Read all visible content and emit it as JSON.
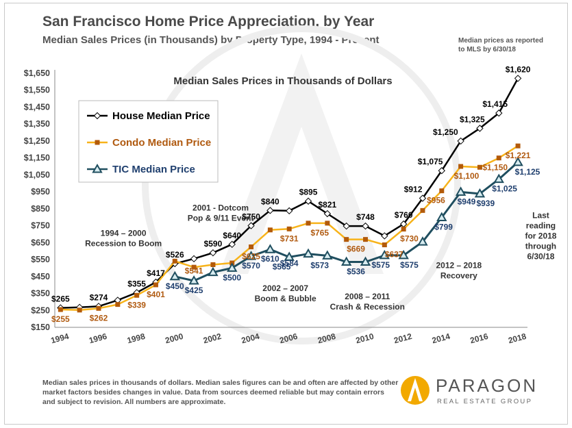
{
  "header": {
    "title": "San Francisco Home Price Appreciation, by Year",
    "subtitle": "Median Sales Prices (in Thousands) by Property Type, 1994 - Present",
    "note_line1": "Median prices as reported",
    "note_line2": "to MLS by 6/30/18"
  },
  "footer": {
    "note": "Median sales prices in thousands of dollars. Median sales figures can be and often are affected by other market factors besides changes in value. Data from sources deemed reliable but may contain errors and subject to revision. All numbers are approximate.",
    "logo_name": "PARAGON",
    "logo_tagline": "REAL ESTATE GROUP"
  },
  "chart_data": {
    "type": "line",
    "title": "Median Sales Prices in Thousands of Dollars",
    "xlabel": "",
    "ylabel": "",
    "xlim": [
      1993.7,
      2018.5
    ],
    "ylim": [
      150,
      1650
    ],
    "grid": false,
    "legend": "upper-left",
    "y_ticks": [
      150,
      250,
      350,
      450,
      550,
      650,
      750,
      850,
      950,
      1050,
      1150,
      1250,
      1350,
      1450,
      1550,
      1650
    ],
    "y_tick_labels": [
      "$150",
      "$250",
      "$350",
      "$450",
      "$550",
      "$650",
      "$750",
      "$850",
      "$950",
      "$1,050",
      "$1,150",
      "$1,250",
      "$1,350",
      "$1,450",
      "$1,550",
      "$1,650"
    ],
    "x_ticks": [
      1994,
      1996,
      1998,
      2000,
      2002,
      2004,
      2006,
      2008,
      2010,
      2012,
      2014,
      2016,
      2018
    ],
    "x_tick_labels": [
      "1994",
      "1996",
      "1998",
      "2000",
      "2002",
      "2004",
      "2006",
      "2008",
      "2010",
      "2012",
      "2014",
      "2016",
      "2018"
    ],
    "series": [
      {
        "name": "House Median Price",
        "color": "#000000",
        "marker": "diamond",
        "label_color": "#000000",
        "x": [
          1994,
          1995,
          1996,
          1997,
          1998,
          1999,
          2000,
          2001,
          2002,
          2003,
          2004,
          2005,
          2006,
          2007,
          2008,
          2009,
          2010,
          2011,
          2012,
          2013,
          2014,
          2015,
          2016,
          2017,
          2018
        ],
        "values": [
          265,
          268,
          274,
          310,
          355,
          417,
          526,
          555,
          590,
          640,
          750,
          840,
          838,
          895,
          821,
          748,
          748,
          690,
          760,
          912,
          1075,
          1250,
          1325,
          1415,
          1620
        ]
      },
      {
        "name": "Condo Median Price",
        "color": "#f7b31a",
        "marker": "square",
        "marker_color": "#b35a0a",
        "label_color": "#b05a10",
        "x": [
          1994,
          1995,
          1996,
          1997,
          1998,
          1999,
          2000,
          2001,
          2002,
          2003,
          2004,
          2005,
          2006,
          2007,
          2008,
          2009,
          2010,
          2011,
          2012,
          2013,
          2014,
          2015,
          2016,
          2017,
          2018
        ],
        "values": [
          255,
          252,
          262,
          285,
          339,
          401,
          541,
          505,
          520,
          530,
          625,
          725,
          731,
          765,
          765,
          669,
          669,
          637,
          730,
          840,
          956,
          1100,
          1095,
          1150,
          1221
        ]
      },
      {
        "name": "TIC Median Price",
        "color": "#1f4e5f",
        "marker": "triangle",
        "label_color": "#1f3f6e",
        "x": [
          2000,
          2001,
          2002,
          2003,
          2004,
          2005,
          2006,
          2007,
          2008,
          2009,
          2010,
          2011,
          2012,
          2013,
          2014,
          2015,
          2016,
          2017,
          2018
        ],
        "values": [
          450,
          425,
          475,
          500,
          570,
          610,
          565,
          584,
          573,
          536,
          536,
          575,
          575,
          655,
          799,
          949,
          939,
          1025,
          1125
        ]
      }
    ],
    "data_labels": [
      {
        "series": 0,
        "x": 1994,
        "y": 265,
        "text": "$265"
      },
      {
        "series": 0,
        "x": 1996,
        "y": 274,
        "text": "$274"
      },
      {
        "series": 0,
        "x": 1998,
        "y": 355,
        "text": "$355"
      },
      {
        "series": 0,
        "x": 1999,
        "y": 417,
        "text": "$417"
      },
      {
        "series": 0,
        "x": 2000,
        "y": 526,
        "text": "$526"
      },
      {
        "series": 0,
        "x": 2002,
        "y": 590,
        "text": "$590"
      },
      {
        "series": 0,
        "x": 2003,
        "y": 640,
        "text": "$640"
      },
      {
        "series": 0,
        "x": 2004,
        "y": 750,
        "text": "$750"
      },
      {
        "series": 0,
        "x": 2005,
        "y": 840,
        "text": "$840"
      },
      {
        "series": 0,
        "x": 2007,
        "y": 895,
        "text": "$895"
      },
      {
        "series": 0,
        "x": 2008,
        "y": 821,
        "text": "$821"
      },
      {
        "series": 0,
        "x": 2010,
        "y": 748,
        "text": "$748"
      },
      {
        "series": 0,
        "x": 2012,
        "y": 760,
        "text": "$760"
      },
      {
        "series": 0,
        "x": 2012.5,
        "y": 912,
        "text": "$912"
      },
      {
        "series": 0,
        "x": 2013.4,
        "y": 1075,
        "text": "$1,075"
      },
      {
        "series": 0,
        "x": 2014.2,
        "y": 1250,
        "text": "$1,250"
      },
      {
        "series": 0,
        "x": 2015.6,
        "y": 1325,
        "text": "$1,325"
      },
      {
        "series": 0,
        "x": 2016.8,
        "y": 1415,
        "text": "$1,415"
      },
      {
        "series": 0,
        "x": 2018,
        "y": 1620,
        "text": "$1,620"
      },
      {
        "series": 1,
        "x": 1994,
        "y": 255,
        "text": "$255"
      },
      {
        "series": 1,
        "x": 1996,
        "y": 262,
        "text": "$262"
      },
      {
        "series": 1,
        "x": 1998,
        "y": 339,
        "text": "$339"
      },
      {
        "series": 1,
        "x": 1999,
        "y": 401,
        "text": "$401"
      },
      {
        "series": 1,
        "x": 2001,
        "y": 541,
        "text": "$541"
      },
      {
        "series": 1,
        "x": 2004,
        "y": 625,
        "text": "$625"
      },
      {
        "series": 1,
        "x": 2006,
        "y": 731,
        "text": "$731"
      },
      {
        "series": 1,
        "x": 2007.6,
        "y": 765,
        "text": "$765"
      },
      {
        "series": 1,
        "x": 2009.5,
        "y": 669,
        "text": "$669"
      },
      {
        "series": 1,
        "x": 2011.5,
        "y": 637,
        "text": "$637"
      },
      {
        "series": 1,
        "x": 2012.3,
        "y": 730,
        "text": "$730"
      },
      {
        "series": 1,
        "x": 2013.7,
        "y": 956,
        "text": "$956"
      },
      {
        "series": 1,
        "x": 2015.3,
        "y": 1100,
        "text": "$1,100"
      },
      {
        "series": 1,
        "x": 2016.8,
        "y": 1150,
        "text": "$1,150"
      },
      {
        "series": 1,
        "x": 2018,
        "y": 1221,
        "text": "$1,221"
      },
      {
        "series": 2,
        "x": 2000,
        "y": 450,
        "text": "$450"
      },
      {
        "series": 2,
        "x": 2001,
        "y": 425,
        "text": "$425"
      },
      {
        "series": 2,
        "x": 2003,
        "y": 500,
        "text": "$500"
      },
      {
        "series": 2,
        "x": 2004,
        "y": 570,
        "text": "$570"
      },
      {
        "series": 2,
        "x": 2005,
        "y": 610,
        "text": "$610"
      },
      {
        "series": 2,
        "x": 2005.6,
        "y": 565,
        "text": "$565"
      },
      {
        "series": 2,
        "x": 2006,
        "y": 584,
        "text": "$584"
      },
      {
        "series": 2,
        "x": 2007.6,
        "y": 573,
        "text": "$573"
      },
      {
        "series": 2,
        "x": 2009.5,
        "y": 536,
        "text": "$536"
      },
      {
        "series": 2,
        "x": 2010.8,
        "y": 575,
        "text": "$575"
      },
      {
        "series": 2,
        "x": 2012.3,
        "y": 575,
        "text": "$575"
      },
      {
        "series": 2,
        "x": 2014.1,
        "y": 799,
        "text": "$799"
      },
      {
        "series": 2,
        "x": 2015.3,
        "y": 949,
        "text": "$949"
      },
      {
        "series": 2,
        "x": 2016.3,
        "y": 939,
        "text": "$939"
      },
      {
        "series": 2,
        "x": 2017.3,
        "y": 1025,
        "text": "$1,025"
      },
      {
        "series": 2,
        "x": 2018.5,
        "y": 1125,
        "text": "$1,125"
      }
    ],
    "annotations": [
      {
        "x": 1997.3,
        "y": 690,
        "lines": [
          "1994 – 2000",
          "Recession to Boom"
        ]
      },
      {
        "x": 2002.4,
        "y": 840,
        "lines": [
          "2001 - Dotcom",
          "Pop & 9/11 Event"
        ]
      },
      {
        "x": 2005.8,
        "y": 365,
        "lines": [
          "2002 – 2007",
          "Boom & Bubble"
        ]
      },
      {
        "x": 2010.1,
        "y": 315,
        "lines": [
          "2008 – 2011",
          "Crash & Recession"
        ]
      },
      {
        "x": 2014.9,
        "y": 500,
        "lines": [
          "2012 – 2018",
          "Recovery"
        ]
      },
      {
        "x": 2019.2,
        "y": 795,
        "lines": [
          "Last",
          "reading",
          "for 2018",
          "through",
          "6/30/18"
        ]
      }
    ]
  }
}
